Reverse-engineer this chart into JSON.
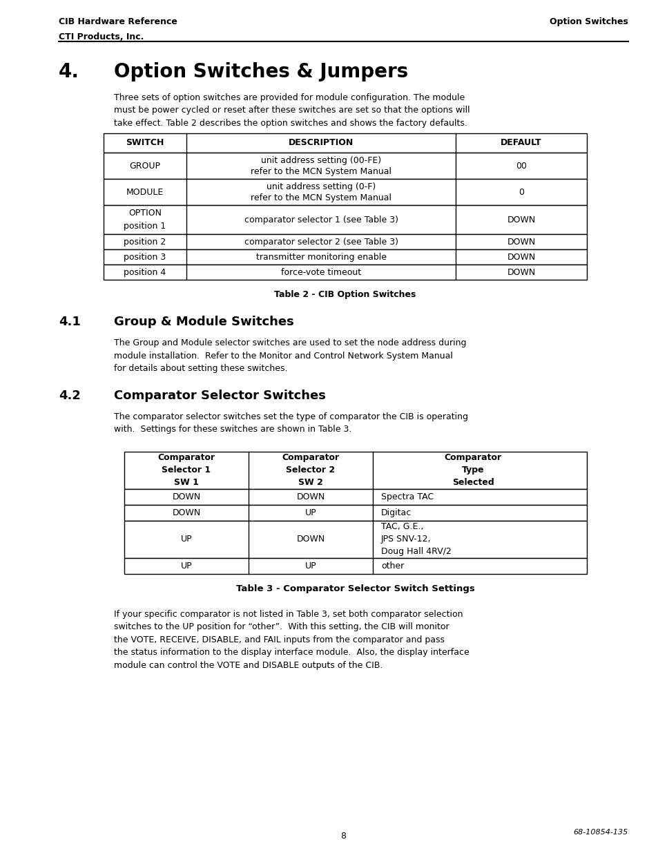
{
  "page_bg": "#ffffff",
  "header_left_line1": "CIB Hardware Reference",
  "header_left_line2": "CTI Products, Inc.",
  "header_right": "Option Switches",
  "section4_num": "4.",
  "section4_title": "Option Switches & Jumpers",
  "section4_body": "Three sets of option switches are provided for module configuration. The module\nmust be power cycled or reset after these switches are set so that the options will\ntake effect. Table 2 describes the option switches and shows the factory defaults.",
  "table2_caption": "Table 2 - CIB Option Switches",
  "table2_headers": [
    "SWITCH",
    "DESCRIPTION",
    "DEFAULT"
  ],
  "table2_rows": [
    [
      "GROUP",
      "unit address setting (00-FE)\nrefer to the MCN System Manual",
      "00"
    ],
    [
      "MODULE",
      "unit address setting (0-F)\nrefer to the MCN System Manual",
      "0"
    ],
    [
      "OPTION\nposition 1",
      "comparator selector 1 (see Table 3)",
      "DOWN"
    ],
    [
      "position 2",
      "comparator selector 2 (see Table 3)",
      "DOWN"
    ],
    [
      "position 3",
      "transmitter monitoring enable",
      "DOWN"
    ],
    [
      "position 4",
      "force-vote timeout",
      "DOWN"
    ]
  ],
  "section41_num": "4.1",
  "section41_title": "Group & Module Switches",
  "section41_body": "The Group and Module selector switches are used to set the node address during\nmodule installation.  Refer to the Monitor and Control Network System Manual\nfor details about setting these switches.",
  "section42_num": "4.2",
  "section42_title": "Comparator Selector Switches",
  "section42_body": "The comparator selector switches set the type of comparator the CIB is operating\nwith.  Settings for these switches are shown in Table 3.",
  "table3_caption": "Table 3 - Comparator Selector Switch Settings",
  "table3_headers": [
    "Comparator\nSelector 1\nSW 1",
    "Comparator\nSelector 2\nSW 2",
    "Comparator\nType\nSelected"
  ],
  "table3_rows": [
    [
      "DOWN",
      "DOWN",
      "Spectra TAC"
    ],
    [
      "DOWN",
      "UP",
      "Digitac"
    ],
    [
      "UP",
      "DOWN",
      "TAC, G.E.,\nJPS SNV-12,\nDoug Hall 4RV/2"
    ],
    [
      "UP",
      "UP",
      "other"
    ]
  ],
  "final_para": "If your specific comparator is not listed in Table 3, set both comparator selection\nswitches to the UP position for “other”.  With this setting, the CIB will monitor\nthe VOTE, RECEIVE, DISABLE, and FAIL inputs from the comparator and pass\nthe status information to the display interface module.  Also, the display interface\nmodule can control the VOTE and DISABLE outputs of the CIB.",
  "footer_right": "68-10854-135",
  "footer_center": "8"
}
